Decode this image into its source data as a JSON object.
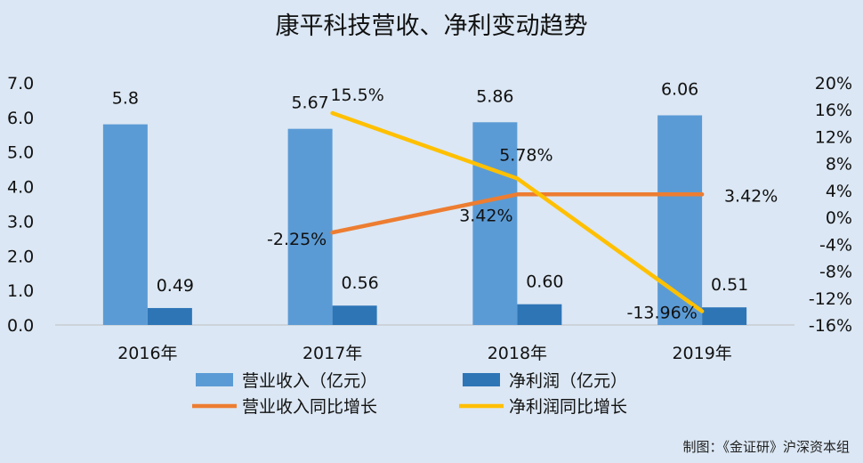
{
  "chart_data": {
    "type": "bar",
    "title": "康平科技营收、净利变动趋势",
    "categories": [
      "2016年",
      "2017年",
      "2018年",
      "2019年"
    ],
    "series": [
      {
        "name": "营业收入（亿元）",
        "kind": "bar",
        "axis": "left",
        "color": "#5b9bd5",
        "values": [
          5.8,
          5.67,
          5.86,
          6.06
        ],
        "labels": [
          "5.8",
          "5.67",
          "5.86",
          "6.06"
        ]
      },
      {
        "name": "净利润（亿元）",
        "kind": "bar",
        "axis": "left",
        "color": "#2e75b6",
        "values": [
          0.49,
          0.56,
          0.6,
          0.51
        ],
        "labels": [
          "0.49",
          "0.56",
          "0.60",
          "0.51"
        ]
      },
      {
        "name": "营业收入同比增长",
        "kind": "line",
        "axis": "right",
        "color": "#ed7d31",
        "values": [
          null,
          -2.25,
          3.42,
          3.42
        ],
        "labels": [
          null,
          "-2.25%",
          "3.42%",
          "3.42%"
        ]
      },
      {
        "name": "净利润同比增长",
        "kind": "line",
        "axis": "right",
        "color": "#ffc000",
        "values": [
          null,
          15.5,
          5.78,
          -13.96
        ],
        "labels": [
          null,
          "15.5%",
          "5.78%",
          "-13.96%"
        ]
      }
    ],
    "y_left": {
      "ylim": [
        0,
        7
      ],
      "ticks": [
        "0.0",
        "1.0",
        "2.0",
        "3.0",
        "4.0",
        "5.0",
        "6.0",
        "7.0"
      ]
    },
    "y_right": {
      "ylim": [
        -16,
        20
      ],
      "ticks": [
        "-16%",
        "-12%",
        "-8%",
        "-4%",
        "0%",
        "4%",
        "8%",
        "12%",
        "16%",
        "20%"
      ]
    },
    "grid": false,
    "legend_position": "bottom"
  },
  "footer": {
    "credit": "制图：《金证研》沪深资本组"
  }
}
